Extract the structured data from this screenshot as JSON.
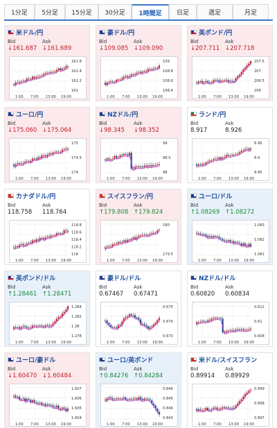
{
  "tabs": [
    {
      "label": "1分足",
      "width": 44,
      "active": false
    },
    {
      "label": "5分足",
      "width": 44,
      "active": false
    },
    {
      "label": "15分足",
      "width": 48,
      "active": false
    },
    {
      "label": "30分足",
      "width": 48,
      "active": false
    },
    {
      "label": "1時間足",
      "width": 54,
      "active": true
    },
    {
      "label": "日足",
      "width": 40,
      "active": false
    },
    {
      "label": "週足",
      "width": 52,
      "active": false
    },
    {
      "label": "月足",
      "width": 52,
      "active": false
    }
  ],
  "labels": {
    "bid": "Bid",
    "ask": "Ask"
  },
  "cards": [
    {
      "pair": "米ドル/円",
      "bg": "pink",
      "flag": [
        "#1e3b8f",
        "#c8102e"
      ],
      "bid": "↓161.687",
      "ask": "↓161.689",
      "dir": "dn",
      "ticks": [
        "161.8",
        "161.4",
        "161.2",
        "161"
      ],
      "xticks": [
        "1:00",
        "7:00",
        "13:00",
        "19:00"
      ],
      "shape": "up"
    },
    {
      "pair": "豪ドル/円",
      "bg": "pink",
      "flag": [
        "#1e3b8f",
        "#1e3b8f"
      ],
      "bid": "↓109.085",
      "ask": "↓109.090",
      "dir": "dn",
      "ticks": [
        "109",
        "108.8",
        "108.6",
        "108.4"
      ],
      "xticks": [
        "1:00",
        "7:00",
        "13:00",
        "19:00"
      ],
      "shape": "up"
    },
    {
      "pair": "英ポンド/円",
      "bg": "pink",
      "flag": [
        "#1e3b8f",
        "#c8102e"
      ],
      "bid": "↓207.711",
      "ask": "↓207.718",
      "dir": "dn",
      "ticks": [
        "207.5",
        "207",
        "206.5",
        "206"
      ],
      "xticks": [
        "1:00",
        "7:00",
        "13:00",
        "19:00"
      ],
      "shape": "upend"
    },
    {
      "pair": "ユーロ/円",
      "bg": "pink",
      "flag": [
        "#1e3b8f",
        "#1e3b8f"
      ],
      "bid": "↓175.060",
      "ask": "↓175.064",
      "dir": "dn",
      "ticks": [
        "175",
        "174.5",
        "174"
      ],
      "xticks": [
        "1:00",
        "7:00",
        "13:00",
        "19:00"
      ],
      "shape": "up"
    },
    {
      "pair": "NZドル/円",
      "bg": "pink",
      "flag": [
        "#1e3b8f",
        "#1e3b8f"
      ],
      "bid": "↓98.345",
      "ask": "↓98.352",
      "dir": "dn",
      "ticks": [
        "99",
        "98.5",
        "98"
      ],
      "xticks": [
        "1:00",
        "7:00",
        "13:00",
        "19:00"
      ],
      "shape": "dipmid"
    },
    {
      "pair": "ランド/円",
      "bg": "white",
      "flag": [
        "#007a4d",
        "#de3831"
      ],
      "bid": "8.917",
      "ask": "8.926",
      "dir": "none",
      "ticks": [
        "8.96",
        "8.9",
        "8.85"
      ],
      "xticks": [
        "1:00",
        "7:00",
        "13:00",
        "19:00"
      ],
      "shape": "up"
    },
    {
      "pair": "カナダドル/円",
      "bg": "white",
      "flag": [
        "#d52b1e",
        "#d52b1e"
      ],
      "bid": "118.758",
      "ask": "118.764",
      "dir": "none",
      "ticks": [
        "118.8",
        "118.6",
        "118.4",
        "118.2",
        "118"
      ],
      "xticks": [
        "1:00",
        "7:00",
        "13:00",
        "19:00"
      ],
      "shape": "up"
    },
    {
      "pair": "スイスフラン/円",
      "bg": "pink",
      "flag": [
        "#d52b1e",
        "#d52b1e"
      ],
      "bid": "↑179.808",
      "ask": "↑179.824",
      "dir": "up",
      "ticks": [
        "180",
        "179.5"
      ],
      "xticks": [
        "1:00",
        "7:00",
        "13:00",
        "19:00"
      ],
      "shape": "up"
    },
    {
      "pair": "ユーロ/ドル",
      "bg": "blue",
      "flag": [
        "#1e3b8f",
        "#1e3b8f"
      ],
      "bid": "↑1.08269",
      "ask": "↑1.08272",
      "dir": "up",
      "ticks": [
        "1.083",
        "1.082",
        "1.081"
      ],
      "xticks": [
        "1:00",
        "7:00",
        "13:00",
        "19:00"
      ],
      "shape": "down"
    },
    {
      "pair": "英ポンド/ドル",
      "bg": "blue",
      "flag": [
        "#1e3b8f",
        "#c8102e"
      ],
      "bid": "↑1.28461",
      "ask": "↑1.28471",
      "dir": "up",
      "ticks": [
        "1.284",
        "1.282",
        "1.28",
        "1.278"
      ],
      "xticks": [
        "1:00",
        "7:00",
        "13:00",
        "19:00"
      ],
      "shape": "upend"
    },
    {
      "pair": "豪ドル/ドル",
      "bg": "white",
      "flag": [
        "#1e3b8f",
        "#1e3b8f"
      ],
      "bid": "0.67467",
      "ask": "0.67471",
      "dir": "none",
      "ticks": [
        "0.675",
        "0.674",
        "0.673"
      ],
      "xticks": [
        "1:00",
        "7:00",
        "13:00",
        "19:00"
      ],
      "shape": "wavy"
    },
    {
      "pair": "NZドル/ドル",
      "bg": "white",
      "flag": [
        "#1e3b8f",
        "#1e3b8f"
      ],
      "bid": "0.60820",
      "ask": "0.60834",
      "dir": "none",
      "ticks": [
        "0.612",
        "0.61",
        "0.608"
      ],
      "xticks": [
        "1:00",
        "7:00",
        "13:00",
        "19:00"
      ],
      "shape": "dipmid"
    },
    {
      "pair": "ユーロ/豪ドル",
      "bg": "pink",
      "flag": [
        "#1e3b8f",
        "#1e3b8f"
      ],
      "bid": "↓1.60470",
      "ask": "↓1.60484",
      "dir": "dn",
      "ticks": [
        "1.607",
        "1.606",
        "1.605",
        "1.604"
      ],
      "xticks": [
        "1:00",
        "7:00",
        "13:00",
        "19:00"
      ],
      "shape": "down"
    },
    {
      "pair": "ユーロ/英ポンド",
      "bg": "blue",
      "flag": [
        "#1e3b8f",
        "#1e3b8f"
      ],
      "bid": "↑0.84276",
      "ask": "↑0.84284",
      "dir": "up",
      "ticks": [
        "0.846",
        "0.845",
        "0.844",
        "0.843"
      ],
      "xticks": [
        "1:00",
        "7:00",
        "13:00",
        "19:00"
      ],
      "shape": "dropend"
    },
    {
      "pair": "米ドル/スイスフラン",
      "bg": "white",
      "flag": [
        "#d52b1e",
        "#d52b1e"
      ],
      "bid": "0.89914",
      "ask": "0.89929",
      "dir": "none",
      "ticks": [
        "0.899",
        "0.898",
        "0.897"
      ],
      "xticks": [
        "1:00",
        "7:00",
        "13:00",
        "19:00"
      ],
      "shape": "upend"
    }
  ]
}
